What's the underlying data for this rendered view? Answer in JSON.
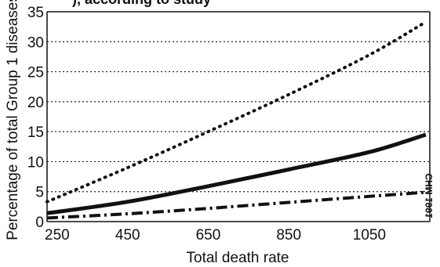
{
  "chart_data": {
    "type": "line",
    "clipped_title_fragment": "), according to study",
    "xlabel": "Total death rate",
    "ylabel": "Percentage of total Group 1 diseases",
    "xlim": [
      250,
      1200
    ],
    "ylim": [
      0,
      35
    ],
    "x_ticks": [
      "250",
      "450",
      "650",
      "850",
      "1050"
    ],
    "y_ticks": [
      "0",
      "5",
      "10",
      "15",
      "20",
      "25",
      "30",
      "35"
    ],
    "grid": "horizontal dotted",
    "side_note": "CHM 1991",
    "series": [
      {
        "style": "dotted",
        "x": [
          250,
          450,
          650,
          850,
          1050,
          1190
        ],
        "y": [
          3.3,
          9.0,
          15.0,
          21.2,
          27.8,
          33.3
        ]
      },
      {
        "style": "solid",
        "x": [
          250,
          450,
          650,
          850,
          1050,
          1190
        ],
        "y": [
          1.4,
          3.3,
          5.9,
          8.7,
          11.6,
          14.5
        ]
      },
      {
        "style": "dash-dot",
        "x": [
          250,
          450,
          650,
          850,
          1050,
          1190
        ],
        "y": [
          0.6,
          1.3,
          2.2,
          3.2,
          4.2,
          4.9
        ]
      }
    ]
  }
}
